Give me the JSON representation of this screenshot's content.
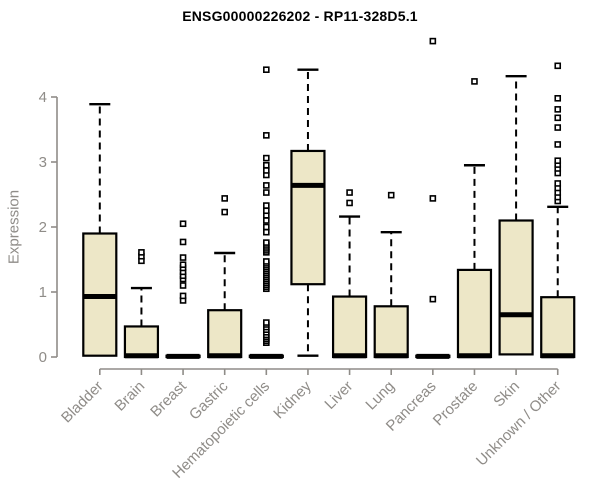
{
  "chart_data": {
    "type": "boxplot",
    "title": "ENSG00000226202 - RP11-328D5.1",
    "ylabel": "Expression",
    "xlabel": "",
    "ylim": [
      0,
      4.95
    ],
    "yticks": [
      0,
      1,
      2,
      3,
      4
    ],
    "grid": false,
    "legend": "none",
    "categories": [
      "Bladder",
      "Brain",
      "Breast",
      "Gastric",
      "Hematopoietic cells",
      "Kidney",
      "Liver",
      "Lung",
      "Pancreas",
      "Prostate",
      "Skin",
      "Unknown / Other"
    ],
    "boxes": [
      {
        "category": "Bladder",
        "q1": 0.02,
        "median": 0.93,
        "q3": 1.9,
        "whisker_low": 0.0,
        "whisker_high": 3.89,
        "outliers": []
      },
      {
        "category": "Brain",
        "q1": 0.0,
        "median": 0.02,
        "q3": 0.47,
        "whisker_low": 0.0,
        "whisker_high": 1.06,
        "outliers": [
          1.48,
          1.55,
          1.61
        ]
      },
      {
        "category": "Breast",
        "q1": 0.0,
        "median": 0.01,
        "q3": 0.02,
        "whisker_low": 0.0,
        "whisker_high": 0.02,
        "outliers": [
          0.87,
          0.94,
          1.1,
          1.2,
          1.25,
          1.31,
          1.37,
          1.42,
          1.53,
          1.77,
          2.05
        ]
      },
      {
        "category": "Gastric",
        "q1": 0.0,
        "median": 0.02,
        "q3": 0.72,
        "whisker_low": 0.0,
        "whisker_high": 1.6,
        "outliers": [
          2.23,
          2.44
        ]
      },
      {
        "category": "Hematopoietic cells",
        "q1": 0.0,
        "median": 0.01,
        "q3": 0.02,
        "whisker_low": 0.0,
        "whisker_high": 0.03,
        "outliers": [
          0.22,
          0.25,
          0.28,
          0.31,
          0.34,
          0.38,
          0.42,
          0.46,
          0.5,
          0.53,
          1.05,
          1.08,
          1.11,
          1.14,
          1.17,
          1.2,
          1.23,
          1.26,
          1.29,
          1.32,
          1.35,
          1.38,
          1.41,
          1.44,
          1.47,
          1.61,
          1.64,
          1.67,
          1.7,
          1.73,
          1.76,
          1.92,
          2.0,
          2.1,
          2.18,
          2.25,
          2.33,
          2.53,
          2.64,
          2.8,
          2.87,
          2.95,
          3.06,
          3.41,
          4.42
        ]
      },
      {
        "category": "Kidney",
        "q1": 1.12,
        "median": 2.64,
        "q3": 3.17,
        "whisker_low": 0.02,
        "whisker_high": 4.42,
        "outliers": []
      },
      {
        "category": "Liver",
        "q1": 0.0,
        "median": 0.02,
        "q3": 0.93,
        "whisker_low": 0.0,
        "whisker_high": 2.16,
        "outliers": [
          2.37,
          2.53
        ]
      },
      {
        "category": "Lung",
        "q1": 0.0,
        "median": 0.02,
        "q3": 0.78,
        "whisker_low": 0.0,
        "whisker_high": 1.92,
        "outliers": [
          2.49
        ]
      },
      {
        "category": "Pancreas",
        "q1": 0.0,
        "median": 0.01,
        "q3": 0.02,
        "whisker_low": 0.0,
        "whisker_high": 0.02,
        "outliers": [
          0.89,
          2.44,
          4.86
        ]
      },
      {
        "category": "Prostate",
        "q1": 0.0,
        "median": 0.02,
        "q3": 1.34,
        "whisker_low": 0.0,
        "whisker_high": 2.95,
        "outliers": [
          4.24
        ]
      },
      {
        "category": "Skin",
        "q1": 0.04,
        "median": 0.65,
        "q3": 2.1,
        "whisker_low": 0.02,
        "whisker_high": 4.32,
        "outliers": []
      },
      {
        "category": "Unknown / Other",
        "q1": 0.0,
        "median": 0.02,
        "q3": 0.92,
        "whisker_low": 0.0,
        "whisker_high": 2.31,
        "outliers": [
          2.4,
          2.46,
          2.53,
          2.6,
          2.67,
          2.83,
          2.9,
          2.96,
          3.02,
          3.27,
          3.53,
          3.68,
          3.81,
          3.98,
          4.48
        ]
      }
    ],
    "colors": {
      "box_fill": "#ede7c7",
      "box_stroke": "#000000",
      "median": "#000000",
      "whisker": "#000000",
      "outlier_stroke": "#000000",
      "outlier_fill": "#ffffff",
      "axis": "#8f8c88",
      "tick_label": "#8f8c88",
      "title": "#000000",
      "background": "#ffffff"
    }
  }
}
